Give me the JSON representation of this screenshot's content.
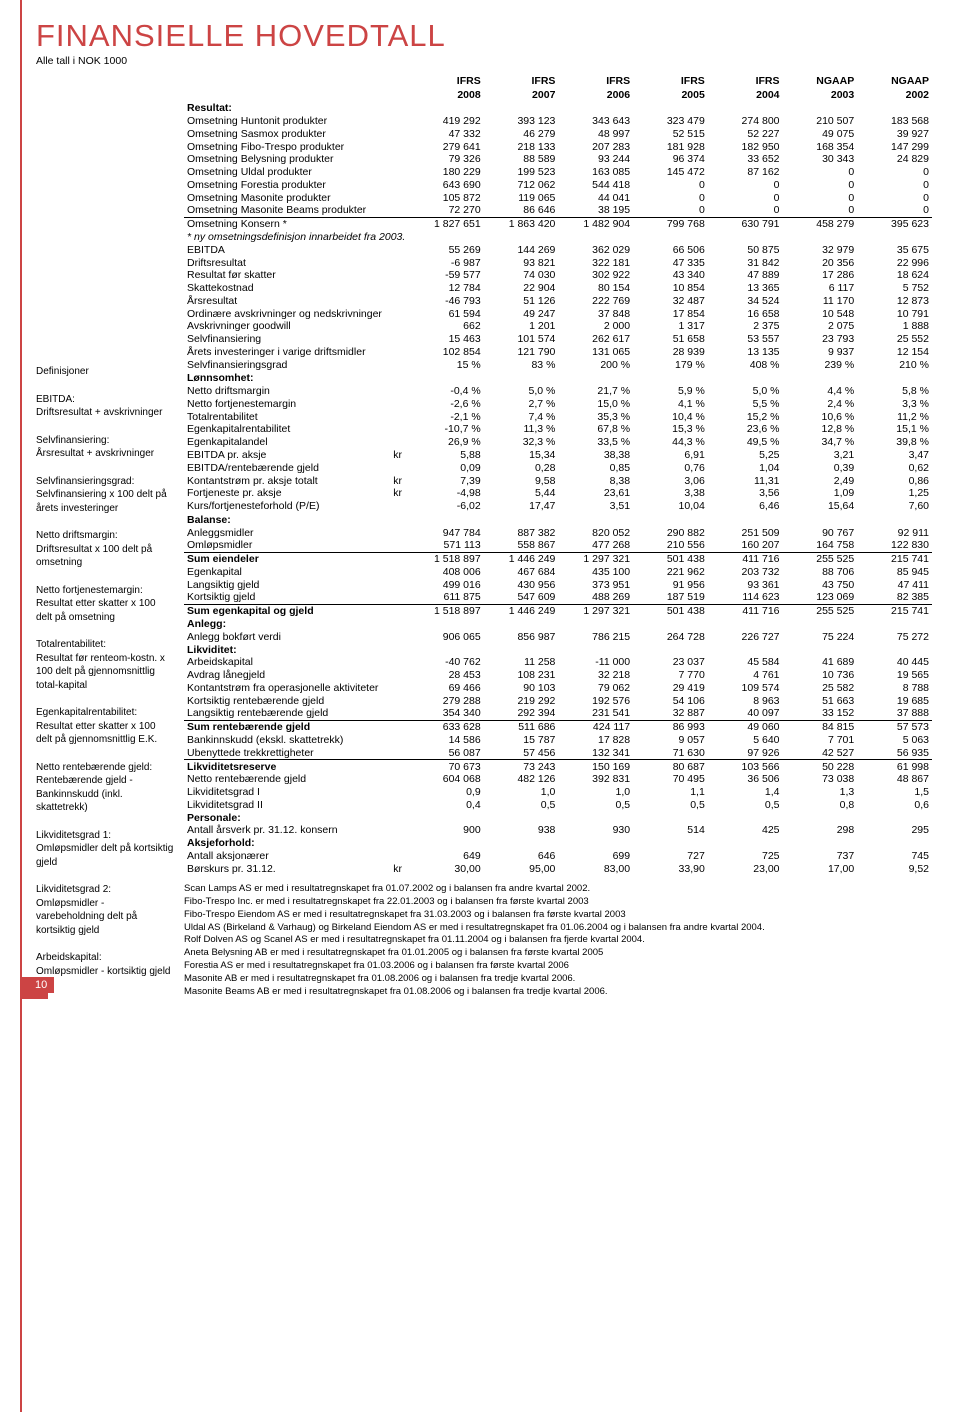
{
  "title": "FINANSIELLE HOVEDTALL",
  "subtitle": "Alle tall i NOK 1000",
  "page_num": "10",
  "colors": {
    "accent": "#c44"
  },
  "col_headers_top": [
    "",
    "IFRS",
    "IFRS",
    "IFRS",
    "IFRS",
    "IFRS",
    "NGAAP",
    "NGAAP"
  ],
  "col_headers_bot": [
    "",
    "2008",
    "2007",
    "2006",
    "2005",
    "2004",
    "2003",
    "2002"
  ],
  "sections": {
    "resultat": {
      "head": "Resultat:",
      "rows": [
        [
          "Omsetning Huntonit produkter",
          "419 292",
          "393 123",
          "343 643",
          "323 479",
          "274 800",
          "210 507",
          "183 568"
        ],
        [
          "Omsetning Sasmox produkter",
          "47 332",
          "46 279",
          "48 997",
          "52 515",
          "52 227",
          "49 075",
          "39 927"
        ],
        [
          "Omsetning Fibo-Trespo produkter",
          "279 641",
          "218 133",
          "207 283",
          "181 928",
          "182 950",
          "168 354",
          "147 299"
        ],
        [
          "Omsetning Belysning produkter",
          "79 326",
          "88 589",
          "93 244",
          "96 374",
          "33 652",
          "30 343",
          "24 829"
        ],
        [
          "Omsetning Uldal produkter",
          "180 229",
          "199 523",
          "163 085",
          "145 472",
          "87 162",
          "0",
          "0"
        ],
        [
          "Omsetning Forestia produkter",
          "643 690",
          "712 062",
          "544 418",
          "0",
          "0",
          "0",
          "0"
        ],
        [
          "Omsetning Masonite produkter",
          "105 872",
          "119 065",
          "44 041",
          "0",
          "0",
          "0",
          "0"
        ],
        [
          "Omsetning Masonite Beams produkter",
          "72 270",
          "86 646",
          "38 195",
          "0",
          "0",
          "0",
          "0"
        ]
      ],
      "total": [
        "Omsetning Konsern *",
        "1 827 651",
        "1 863 420",
        "1 482 904",
        "799 768",
        "630 791",
        "458 279",
        "395 623"
      ],
      "note": "* ny omsetningsdefinisjon innarbeidet fra 2003.",
      "after": [
        [
          "EBITDA",
          "55 269",
          "144 269",
          "362 029",
          "66 506",
          "50 875",
          "32 979",
          "35 675"
        ],
        [
          "Driftsresultat",
          "-6 987",
          "93 821",
          "322 181",
          "47 335",
          "31 842",
          "20 356",
          "22 996"
        ],
        [
          "Resultat før skatter",
          "-59 577",
          "74 030",
          "302 922",
          "43 340",
          "47 889",
          "17 286",
          "18 624"
        ],
        [
          "Skattekostnad",
          "12 784",
          "22 904",
          "80 154",
          "10 854",
          "13 365",
          "6 117",
          "5 752"
        ],
        [
          "Årsresultat",
          "-46 793",
          "51 126",
          "222 769",
          "32 487",
          "34 524",
          "11 170",
          "12 873"
        ],
        [
          "Ordinære avskrivninger og nedskrivninger",
          "61 594",
          "49 247",
          "37 848",
          "17 854",
          "16 658",
          "10 548",
          "10 791"
        ],
        [
          "Avskrivninger goodwill",
          "662",
          "1 201",
          "2 000",
          "1 317",
          "2 375",
          "2 075",
          "1 888"
        ],
        [
          "Selvfinansiering",
          "15 463",
          "101 574",
          "262 617",
          "51 658",
          "53 557",
          "23 793",
          "25 552"
        ],
        [
          "Årets investeringer i varige driftsmidler",
          "102 854",
          "121 790",
          "131 065",
          "28 939",
          "13 135",
          "9 937",
          "12 154"
        ],
        [
          "Selvfinansieringsgrad",
          "15 %",
          "83 %",
          "200 %",
          "179 %",
          "408 %",
          "239 %",
          "210 %"
        ]
      ]
    },
    "lonnsomhet": {
      "head": "Lønnsomhet:",
      "rows": [
        [
          "Netto driftsmargin",
          "-0,4 %",
          "5,0 %",
          "21,7 %",
          "5,9 %",
          "5,0 %",
          "4,4 %",
          "5,8 %"
        ],
        [
          "Netto fortjenestemargin",
          "-2,6 %",
          "2,7 %",
          "15,0 %",
          "4,1 %",
          "5,5 %",
          "2,4 %",
          "3,3 %"
        ],
        [
          "Totalrentabilitet",
          "-2,1 %",
          "7,4 %",
          "35,3 %",
          "10,4 %",
          "15,2 %",
          "10,6 %",
          "11,2 %"
        ],
        [
          "Egenkapitalrentabilitet",
          "-10,7 %",
          "11,3 %",
          "67,8 %",
          "15,3 %",
          "23,6 %",
          "12,8 %",
          "15,1 %"
        ],
        [
          "Egenkapitalandel",
          "26,9 %",
          "32,3 %",
          "33,5 %",
          "44,3 %",
          "49,5 %",
          "34,7 %",
          "39,8 %"
        ]
      ],
      "kr_rows": [
        [
          "EBITDA pr. aksje",
          "kr",
          "5,88",
          "15,34",
          "38,38",
          "6,91",
          "5,25",
          "3,21",
          "3,47"
        ],
        [
          "EBITDA/rentebærende gjeld",
          "",
          "0,09",
          "0,28",
          "0,85",
          "0,76",
          "1,04",
          "0,39",
          "0,62"
        ],
        [
          "Kontantstrøm pr. aksje totalt",
          "kr",
          "7,39",
          "9,58",
          "8,38",
          "3,06",
          "11,31",
          "2,49",
          "0,86"
        ],
        [
          "Fortjeneste pr. aksje",
          "kr",
          "-4,98",
          "5,44",
          "23,61",
          "3,38",
          "3,56",
          "1,09",
          "1,25"
        ],
        [
          "Kurs/fortjenesteforhold (P/E)",
          "",
          "-6,02",
          "17,47",
          "3,51",
          "10,04",
          "6,46",
          "15,64",
          "7,60"
        ]
      ]
    },
    "balanse": {
      "head": "Balanse:",
      "rows": [
        [
          "Anleggsmidler",
          "947 784",
          "887 382",
          "820 052",
          "290 882",
          "251 509",
          "90 767",
          "92 911"
        ],
        [
          "Omløpsmidler",
          "571 113",
          "558 867",
          "477 268",
          "210 556",
          "160 207",
          "164 758",
          "122 830"
        ]
      ],
      "sum1": [
        "Sum eiendeler",
        "1 518 897",
        "1 446 249",
        "1 297 321",
        "501 438",
        "411 716",
        "255 525",
        "215 741"
      ],
      "rows2": [
        [
          "Egenkapital",
          "408 006",
          "467 684",
          "435 100",
          "221 962",
          "203 732",
          "88 706",
          "85 945"
        ],
        [
          "Langsiktig gjeld",
          "499 016",
          "430 956",
          "373 951",
          "91 956",
          "93 361",
          "43 750",
          "47 411"
        ],
        [
          "Kortsiktig gjeld",
          "611 875",
          "547 609",
          "488 269",
          "187 519",
          "114 623",
          "123 069",
          "82 385"
        ]
      ],
      "sum2": [
        "Sum egenkapital og gjeld",
        "1 518 897",
        "1 446 249",
        "1 297 321",
        "501 438",
        "411 716",
        "255 525",
        "215 741"
      ]
    },
    "anlegg": {
      "head": "Anlegg:",
      "rows": [
        [
          "Anlegg bokført verdi",
          "906 065",
          "856 987",
          "786 215",
          "264 728",
          "226 727",
          "75 224",
          "75 272"
        ]
      ]
    },
    "likviditet": {
      "head": "Likviditet:",
      "rows": [
        [
          "Arbeidskapital",
          "-40 762",
          "11 258",
          "-11 000",
          "23 037",
          "45 584",
          "41 689",
          "40 445"
        ],
        [
          "Avdrag lånegjeld",
          "28 453",
          "108 231",
          "32 218",
          "7 770",
          "4 761",
          "10 736",
          "19 565"
        ],
        [
          "Kontantstrøm fra operasjonelle aktiviteter",
          "69 466",
          "90 103",
          "79 062",
          "29 419",
          "109 574",
          "25 582",
          "8 788"
        ],
        [
          "Kortsiktig rentebærende gjeld",
          "279 288",
          "219 292",
          "192 576",
          "54 106",
          "8 963",
          "51 663",
          "19 685"
        ],
        [
          "Langsiktig rentebærende gjeld",
          "354 340",
          "292 394",
          "231 541",
          "32 887",
          "40 097",
          "33 152",
          "37 888"
        ]
      ],
      "sum": [
        "Sum rentebærende gjeld",
        "633 628",
        "511 686",
        "424 117",
        "86 993",
        "49 060",
        "84 815",
        "57 573"
      ],
      "rows2": [
        [
          "Bankinnskudd (ekskl. skattetrekk)",
          "14 586",
          "15 787",
          "17 828",
          "9 057",
          "5 640",
          "7 701",
          "5 063"
        ],
        [
          "Ubenyttede trekkrettigheter",
          "56 087",
          "57 456",
          "132 341",
          "71 630",
          "97 926",
          "42 527",
          "56 935"
        ]
      ],
      "reserve": [
        "Likviditetsreserve",
        "70 673",
        "73 243",
        "150 169",
        "80 687",
        "103 566",
        "50 228",
        "61 998"
      ],
      "rows3": [
        [
          "Netto rentebærende gjeld",
          "604 068",
          "482 126",
          "392 831",
          "70 495",
          "36 506",
          "73 038",
          "48 867"
        ],
        [
          "Likviditetsgrad I",
          "0,9",
          "1,0",
          "1,0",
          "1,1",
          "1,4",
          "1,3",
          "1,5"
        ],
        [
          "Likviditetsgrad II",
          "0,4",
          "0,5",
          "0,5",
          "0,5",
          "0,5",
          "0,8",
          "0,6"
        ]
      ]
    },
    "personale": {
      "head": "Personale:",
      "rows": [
        [
          "Antall årsverk pr. 31.12. konsern",
          "900",
          "938",
          "930",
          "514",
          "425",
          "298",
          "295"
        ]
      ]
    },
    "aksje": {
      "head": "Aksjeforhold:",
      "rows": [
        [
          "Antall aksjonærer",
          "",
          "649",
          "646",
          "699",
          "727",
          "725",
          "737",
          "745"
        ],
        [
          "Børskurs pr. 31.12.",
          "kr",
          "30,00",
          "95,00",
          "83,00",
          "33,90",
          "23,00",
          "17,00",
          "9,52"
        ]
      ]
    }
  },
  "defs": [
    {
      "t": "Definisjoner",
      "d": ""
    },
    {
      "t": "EBITDA:",
      "d": "Driftsresultat + avskrivninger"
    },
    {
      "t": "Selvfinansiering:",
      "d": "Årsresultat + avskrivninger"
    },
    {
      "t": "Selvfinansieringsgrad:",
      "d": "Selvfinansiering x 100 delt på årets investeringer"
    },
    {
      "t": "Netto driftsmargin:",
      "d": "Driftsresultat x 100 delt på omsetning"
    },
    {
      "t": "Netto fortjenestemargin:",
      "d": "Resultat etter skatter x 100 delt på omsetning"
    },
    {
      "t": "Totalrentabilitet:",
      "d": "Resultat før renteom-kostn. x 100 delt på gjennomsnittlig total-kapital"
    },
    {
      "t": "Egenkapitalrentabilitet:",
      "d": "Resultat etter skatter x 100 delt på gjennomsnittlig E.K."
    },
    {
      "t": "Netto rentebærende gjeld:",
      "d": "Rentebærende gjeld - Bankinnskudd (inkl. skattetrekk)"
    },
    {
      "t": "Likviditetsgrad 1:",
      "d": "Omløpsmidler delt på kortsiktig gjeld"
    },
    {
      "t": "Likviditetsgrad 2:",
      "d": "Omløpsmidler - varebeholdning delt på kortsiktig gjeld"
    },
    {
      "t": "Arbeidskapital:",
      "d": "Omløpsmidler - kortsiktig gjeld"
    }
  ],
  "footnotes": [
    "Scan Lamps AS er med i resultatregnskapet fra 01.07.2002 og i balansen fra andre kvartal 2002.",
    "Fibo-Trespo Inc. er med i resultatregnskapet fra 22.01.2003 og i balansen fra første kvartal 2003",
    "Fibo-Trespo Eiendom AS er med i resultatregnskapet fra 31.03.2003 og i balansen fra første kvartal 2003",
    "Uldal AS (Birkeland & Varhaug) og Birkeland Eiendom AS er med i resultatregnskapet fra 01.06.2004 og i balansen fra andre kvartal 2004.",
    "Rolf Dolven AS og Scanel AS er med i resultatregnskapet fra 01.11.2004 og i balansen fra fjerde kvartal 2004.",
    "Aneta Belysning AB er med i resultatregnskapet fra 01.01.2005 og i balansen fra første kvartal 2005",
    "Forestia AS er med i resultatregnskapet fra 01.03.2006 og i balansen fra første kvartal 2006",
    "Masonite AB er med i resultatregnskapet fra 01.08.2006 og i balansen fra tredje kvartal 2006.",
    "Masonite Beams AB er med i resultatregnskapet fra 01.08.2006 og i balansen fra tredje kvartal 2006."
  ]
}
